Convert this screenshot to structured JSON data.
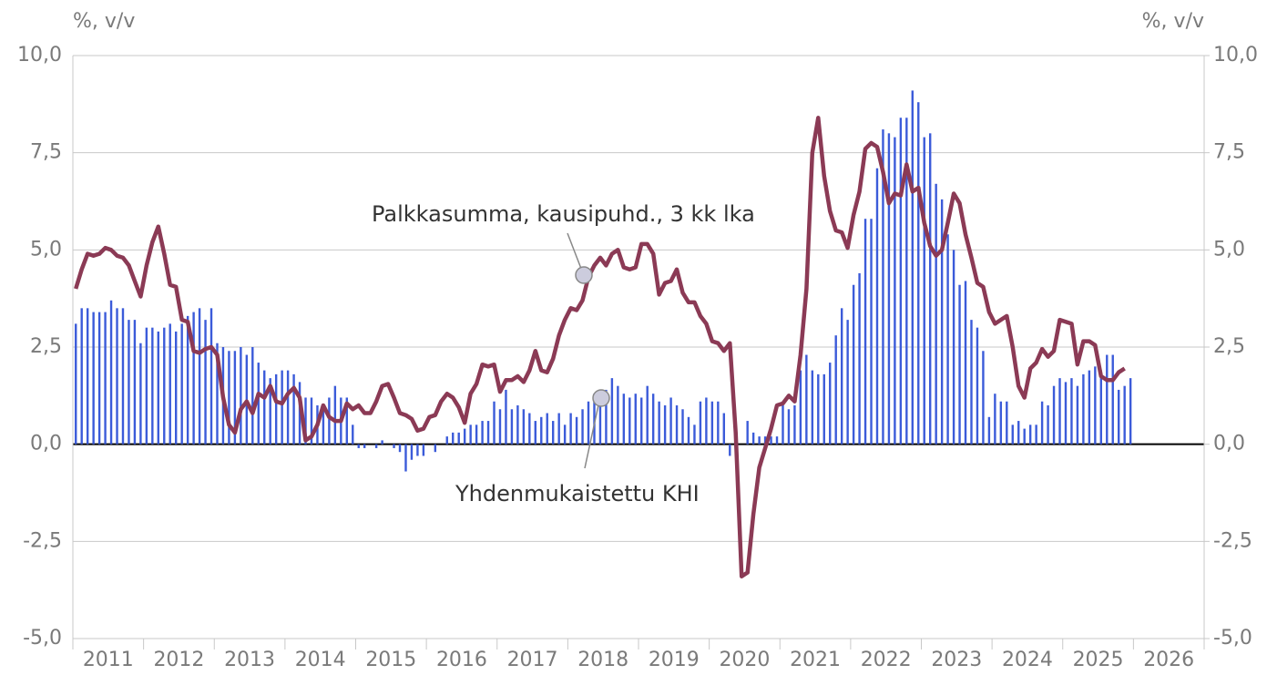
{
  "chart_data": {
    "type": "combo",
    "y_axis_label": "%, v/v",
    "y2_axis_label": "%, v/v",
    "annotations": [
      "Palkkasumma, kausipuhd., 3 kk lka",
      "Yhdenmukaistettu KHI"
    ],
    "ylim": [
      -5,
      10
    ],
    "y2lim": [
      -5,
      10
    ],
    "yticks": [
      {
        "value": -5,
        "label": "-5,0"
      },
      {
        "value": -2.5,
        "label": "-2,5"
      },
      {
        "value": 0,
        "label": "0,0"
      },
      {
        "value": 2.5,
        "label": "2,5"
      },
      {
        "value": 5,
        "label": "5,0"
      },
      {
        "value": 7.5,
        "label": "7,5"
      },
      {
        "value": 10,
        "label": "10,0"
      }
    ],
    "y2ticks": [
      {
        "value": -5,
        "label": "-5,0"
      },
      {
        "value": -2.5,
        "label": "-2,5"
      },
      {
        "value": 0,
        "label": "0,0"
      },
      {
        "value": 2.5,
        "label": "2,5"
      },
      {
        "value": 5,
        "label": "5,0"
      },
      {
        "value": 7.5,
        "label": "7,5"
      },
      {
        "value": 10,
        "label": "10,0"
      }
    ],
    "grid": true,
    "categories": [
      null,
      null,
      null,
      null,
      null,
      null,
      "2011",
      null,
      null,
      null,
      null,
      null,
      null,
      null,
      null,
      null,
      null,
      null,
      "2012",
      null,
      null,
      null,
      null,
      null,
      null,
      null,
      null,
      null,
      null,
      null,
      "2013",
      null,
      null,
      null,
      null,
      null,
      null,
      null,
      null,
      null,
      null,
      null,
      "2014",
      null,
      null,
      null,
      null,
      null,
      null,
      null,
      null,
      null,
      null,
      null,
      "2015",
      null,
      null,
      null,
      null,
      null,
      null,
      null,
      null,
      null,
      null,
      null,
      "2016",
      null,
      null,
      null,
      null,
      null,
      null,
      null,
      null,
      null,
      null,
      null,
      "2017",
      null,
      null,
      null,
      null,
      null,
      null,
      null,
      null,
      null,
      null,
      null,
      "2018",
      null,
      null,
      null,
      null,
      null,
      null,
      null,
      null,
      null,
      null,
      null,
      "2019",
      null,
      null,
      null,
      null,
      null,
      null,
      null,
      null,
      null,
      null,
      null,
      "2020",
      null,
      null,
      null,
      null,
      null,
      null,
      null,
      null,
      null,
      null,
      null,
      "2021",
      null,
      null,
      null,
      null,
      null,
      null,
      null,
      null,
      null,
      null,
      null,
      "2022",
      null,
      null,
      null,
      null,
      null,
      null,
      null,
      null,
      null,
      null,
      null,
      "2023",
      null,
      null,
      null,
      null,
      null,
      null,
      null,
      null,
      null,
      null,
      null,
      "2024",
      null,
      null,
      null,
      null,
      null,
      null,
      null,
      null,
      null,
      null,
      null,
      "2025",
      null,
      null,
      null,
      null,
      null,
      null,
      null,
      null,
      null,
      null,
      null,
      "2026",
      null,
      null,
      null,
      null,
      null
    ],
    "series": [
      {
        "name": "Yhdenmukaistettu KHI",
        "type": "bar",
        "color": "#3b5bd9",
        "values": [
          3.1,
          3.5,
          3.5,
          3.4,
          3.4,
          3.4,
          3.7,
          3.5,
          3.5,
          3.2,
          3.2,
          2.6,
          3.0,
          3.0,
          2.9,
          3.0,
          3.1,
          2.9,
          3.1,
          3.3,
          3.4,
          3.5,
          3.2,
          3.5,
          2.6,
          2.5,
          2.4,
          2.4,
          2.5,
          2.3,
          2.5,
          2.1,
          1.9,
          1.7,
          1.8,
          1.9,
          1.9,
          1.8,
          1.6,
          1.2,
          1.2,
          1.0,
          0.9,
          1.2,
          1.5,
          1.2,
          1.2,
          0.5,
          -0.1,
          -0.1,
          0.0,
          -0.1,
          0.1,
          0.0,
          -0.1,
          -0.2,
          -0.7,
          -0.4,
          -0.3,
          -0.3,
          0.0,
          -0.2,
          0.0,
          0.2,
          0.3,
          0.3,
          0.4,
          0.5,
          0.5,
          0.6,
          0.6,
          1.1,
          0.9,
          1.4,
          0.9,
          1.0,
          0.9,
          0.8,
          0.6,
          0.7,
          0.8,
          0.6,
          0.8,
          0.5,
          0.8,
          0.7,
          0.9,
          1.1,
          1.3,
          1.3,
          1.4,
          1.7,
          1.5,
          1.3,
          1.2,
          1.3,
          1.2,
          1.5,
          1.3,
          1.1,
          1.0,
          1.2,
          1.0,
          0.9,
          0.7,
          0.5,
          1.1,
          1.2,
          1.1,
          1.1,
          0.8,
          -0.3,
          -0.1,
          0.0,
          0.6,
          0.3,
          0.2,
          0.2,
          0.2,
          0.2,
          1.0,
          0.9,
          1.0,
          1.9,
          2.3,
          1.9,
          1.8,
          1.8,
          2.1,
          2.8,
          3.5,
          3.2,
          4.1,
          4.4,
          5.8,
          5.8,
          7.1,
          8.1,
          8.0,
          7.9,
          8.4,
          8.4,
          9.1,
          8.8,
          7.9,
          8.0,
          6.7,
          6.3,
          5.4,
          5.0,
          4.1,
          4.2,
          3.2,
          3.0,
          2.4,
          0.7,
          1.3,
          1.1,
          1.1,
          0.5,
          0.6,
          0.4,
          0.5,
          0.5,
          1.1,
          1.0,
          1.5,
          1.7,
          1.6,
          1.7,
          1.5,
          1.8,
          1.9,
          2.0,
          1.9,
          2.3,
          2.3,
          1.4,
          1.5,
          1.7,
          null,
          null,
          null,
          null,
          null,
          null,
          null,
          null,
          null,
          null,
          null,
          null
        ]
      },
      {
        "name": "Palkkasumma, kausipuhd., 3 kk lka",
        "type": "line",
        "color": "#8b3a55",
        "values": [
          4.0,
          4.5,
          4.9,
          4.85,
          4.9,
          5.05,
          5.0,
          4.85,
          4.8,
          4.6,
          4.2,
          3.8,
          4.6,
          5.2,
          5.6,
          4.9,
          4.1,
          4.05,
          3.2,
          3.15,
          2.4,
          2.35,
          2.45,
          2.5,
          2.3,
          1.2,
          0.5,
          0.3,
          0.9,
          1.1,
          0.8,
          1.3,
          1.2,
          1.5,
          1.1,
          1.05,
          1.3,
          1.45,
          1.2,
          0.1,
          0.2,
          0.5,
          1.0,
          0.7,
          0.6,
          0.6,
          1.05,
          0.9,
          1.0,
          0.8,
          0.8,
          1.1,
          1.5,
          1.55,
          1.2,
          0.8,
          0.75,
          0.65,
          0.35,
          0.4,
          0.7,
          0.75,
          1.1,
          1.3,
          1.2,
          0.95,
          0.55,
          1.3,
          1.55,
          2.05,
          2.0,
          2.05,
          1.35,
          1.65,
          1.65,
          1.75,
          1.6,
          1.9,
          2.4,
          1.9,
          1.85,
          2.2,
          2.8,
          3.2,
          3.5,
          3.45,
          3.7,
          4.3,
          4.6,
          4.8,
          4.6,
          4.9,
          5.0,
          4.55,
          4.5,
          4.55,
          5.15,
          5.15,
          4.9,
          3.85,
          4.15,
          4.2,
          4.5,
          3.9,
          3.65,
          3.65,
          3.3,
          3.1,
          2.65,
          2.6,
          2.4,
          2.6,
          0.3,
          -3.4,
          -3.3,
          -1.8,
          -0.6,
          -0.1,
          0.4,
          1.0,
          1.05,
          1.25,
          1.1,
          2.3,
          4.0,
          7.5,
          8.4,
          6.9,
          6.0,
          5.5,
          5.45,
          5.05,
          5.9,
          6.5,
          7.6,
          7.75,
          7.65,
          7.0,
          6.2,
          6.45,
          6.4,
          7.2,
          6.5,
          6.6,
          5.7,
          5.1,
          4.85,
          5.0,
          5.7,
          6.45,
          6.2,
          5.4,
          4.8,
          4.15,
          4.05,
          3.4,
          3.1,
          3.2,
          3.3,
          2.5,
          1.5,
          1.2,
          1.95,
          2.1,
          2.45,
          2.25,
          2.4,
          3.2,
          3.15,
          3.1,
          2.05,
          2.65,
          2.65,
          2.55,
          1.75,
          1.65,
          1.65,
          1.85,
          1.95,
          null,
          null,
          null,
          null,
          null,
          null,
          null,
          null,
          null,
          null,
          null,
          null,
          null
        ]
      }
    ]
  }
}
